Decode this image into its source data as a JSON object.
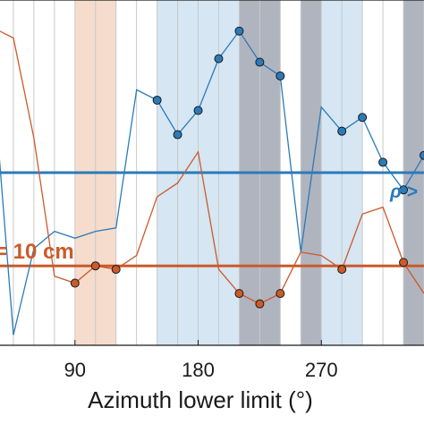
{
  "chart_data": {
    "type": "line",
    "xlabel": "Azimuth lower limit (°)",
    "x_ticks": [
      90,
      180,
      270
    ],
    "xlim": [
      30,
      345
    ],
    "ylim": [
      0,
      1
    ],
    "grid": "vertical",
    "bands": [
      {
        "from": 90,
        "to": 120,
        "color": "#f6dccd"
      },
      {
        "from": 120,
        "to": 150,
        "color": "#ffffff"
      },
      {
        "from": 150,
        "to": 210,
        "color": "#d6e6f3"
      },
      {
        "from": 210,
        "to": 240,
        "color": "#b0b4bf"
      },
      {
        "from": 255,
        "to": 270,
        "color": "#b0b4bf"
      },
      {
        "from": 270,
        "to": 300,
        "color": "#d6e6f3"
      },
      {
        "from": 330,
        "to": 345,
        "color": "#b0b4bf"
      }
    ],
    "series": [
      {
        "color": "#2b7bb9",
        "x": [
          30,
          45,
          60,
          75,
          90,
          105,
          120,
          135,
          150,
          165,
          180,
          195,
          210,
          225,
          240,
          255,
          270,
          285,
          300,
          315,
          330,
          345
        ],
        "y": [
          0.78,
          0.03,
          0.28,
          0.33,
          0.31,
          0.33,
          0.34,
          0.74,
          0.71,
          0.61,
          0.68,
          0.83,
          0.91,
          0.82,
          0.78,
          0.27,
          0.69,
          0.62,
          0.66,
          0.53,
          0.45,
          0.55
        ],
        "marked_x": [
          150,
          165,
          180,
          195,
          210,
          225,
          240,
          285,
          300,
          315,
          330,
          345
        ],
        "threshold": 0.5,
        "threshold_label": "ρ >"
      },
      {
        "color": "#cc5a2a",
        "x": [
          30,
          45,
          60,
          75,
          90,
          105,
          120,
          135,
          150,
          165,
          180,
          195,
          210,
          225,
          240,
          255,
          270,
          285,
          300,
          315,
          330,
          345
        ],
        "y": [
          0.92,
          0.89,
          0.6,
          0.2,
          0.18,
          0.23,
          0.22,
          0.26,
          0.43,
          0.47,
          0.56,
          0.22,
          0.15,
          0.12,
          0.15,
          0.27,
          0.26,
          0.22,
          0.38,
          0.4,
          0.24,
          0.15
        ],
        "marked_x": [
          90,
          105,
          120,
          210,
          225,
          240,
          285,
          330
        ],
        "threshold": 0.23,
        "threshold_label": "= 10 cm"
      }
    ]
  }
}
